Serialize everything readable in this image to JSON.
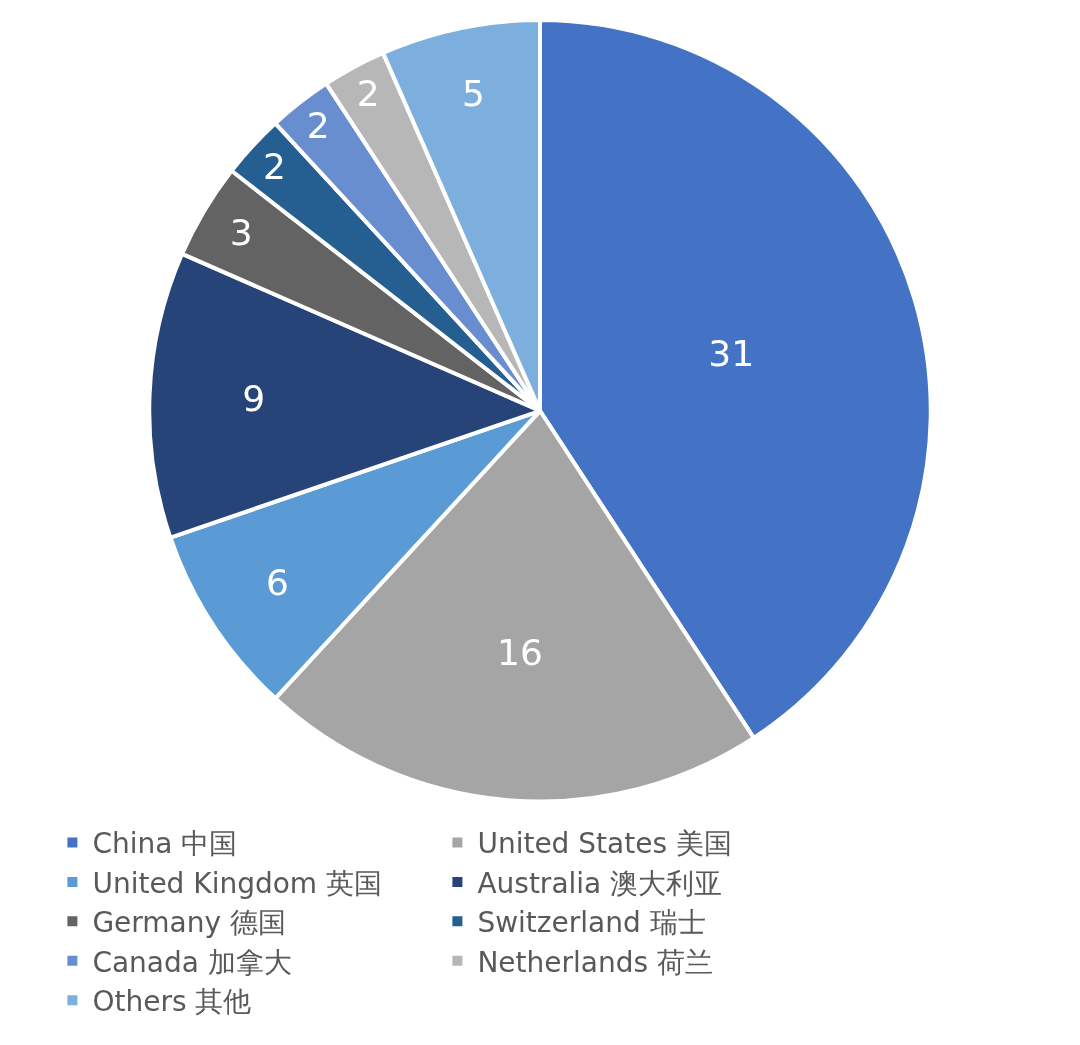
{
  "chart_data": {
    "type": "pie",
    "categories": [
      "China 中国",
      "United States 美国",
      "United Kingdom 英国",
      "Australia 澳大利亚",
      "Germany 德国",
      "Switzerland 瑞士",
      "Canada 加拿大",
      "Netherlands 荷兰",
      "Others 其他"
    ],
    "values": [
      31,
      16,
      6,
      9,
      3,
      2,
      2,
      2,
      5
    ],
    "colors": [
      "#4472c4",
      "#a5a5a5",
      "#5b9bd5",
      "#264478",
      "#636363",
      "#255e91",
      "#698ed0",
      "#b7b7b7",
      "#7cafdd"
    ],
    "data_labels": true,
    "legend": "bottom"
  }
}
